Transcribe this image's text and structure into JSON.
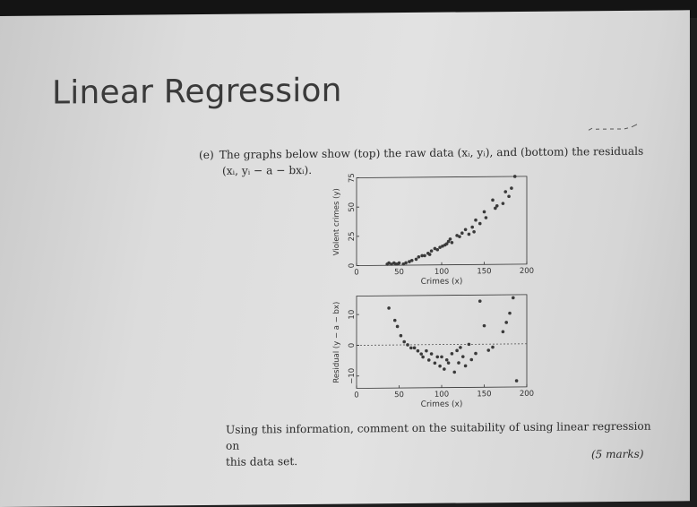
{
  "slide": {
    "title": "Linear Regression",
    "question_label": "(e)",
    "question_line1": "The graphs below show (top) the raw data (xᵢ, yᵢ), and (bottom) the residuals",
    "question_line2": "(xᵢ, yᵢ − a − bxᵢ).",
    "followup_line1": "Using this information, comment on the suitability of using linear regression on",
    "followup_line2": "this data set.",
    "marks": "(5 marks)"
  },
  "chart_data": [
    {
      "type": "scatter",
      "title": "",
      "xlabel": "Crimes (x)",
      "ylabel": "Violent crimes (y)",
      "xlim": [
        0,
        200
      ],
      "ylim": [
        0,
        75
      ],
      "xticks": [
        0,
        50,
        100,
        150,
        200
      ],
      "xtick_labels": [
        "0",
        "50",
        "100",
        "150",
        "200"
      ],
      "yticks": [
        0,
        25,
        50,
        75
      ],
      "ytick_labels": [
        "0",
        "25",
        "50",
        "75"
      ],
      "points": [
        [
          36,
          1
        ],
        [
          38,
          2
        ],
        [
          41,
          1
        ],
        [
          44,
          2
        ],
        [
          46,
          1
        ],
        [
          48,
          1
        ],
        [
          50,
          2
        ],
        [
          55,
          1
        ],
        [
          58,
          2
        ],
        [
          62,
          3
        ],
        [
          65,
          4
        ],
        [
          70,
          5
        ],
        [
          73,
          7
        ],
        [
          77,
          8
        ],
        [
          80,
          8
        ],
        [
          84,
          10
        ],
        [
          86,
          9
        ],
        [
          88,
          12
        ],
        [
          92,
          14
        ],
        [
          95,
          13
        ],
        [
          98,
          15
        ],
        [
          101,
          16
        ],
        [
          104,
          17
        ],
        [
          106,
          18
        ],
        [
          108,
          20
        ],
        [
          110,
          22
        ],
        [
          112,
          19
        ],
        [
          118,
          25
        ],
        [
          121,
          24
        ],
        [
          124,
          27
        ],
        [
          128,
          30
        ],
        [
          132,
          26
        ],
        [
          136,
          32
        ],
        [
          138,
          28
        ],
        [
          140,
          38
        ],
        [
          145,
          35
        ],
        [
          150,
          45
        ],
        [
          152,
          40
        ],
        [
          160,
          55
        ],
        [
          163,
          48
        ],
        [
          165,
          50
        ],
        [
          172,
          52
        ],
        [
          175,
          62
        ],
        [
          179,
          58
        ],
        [
          182,
          65
        ],
        [
          186,
          75
        ]
      ]
    },
    {
      "type": "scatter",
      "title": "",
      "xlabel": "Crimes (x)",
      "ylabel": "Residual (y − a − bx)",
      "xlim": [
        0,
        200
      ],
      "ylim": [
        -14,
        16
      ],
      "xticks": [
        0,
        50,
        100,
        150,
        200
      ],
      "xtick_labels": [
        "0",
        "50",
        "100",
        "150",
        "200"
      ],
      "yticks": [
        -10,
        0,
        10
      ],
      "ytick_labels": [
        "−10",
        "0",
        "10"
      ],
      "reference_line_y": 0,
      "points": [
        [
          38,
          12
        ],
        [
          45,
          8
        ],
        [
          48,
          6
        ],
        [
          52,
          3
        ],
        [
          56,
          1
        ],
        [
          60,
          0
        ],
        [
          64,
          -1
        ],
        [
          68,
          -1
        ],
        [
          72,
          -2
        ],
        [
          76,
          -3
        ],
        [
          78,
          -4
        ],
        [
          82,
          -2
        ],
        [
          85,
          -5
        ],
        [
          88,
          -3
        ],
        [
          92,
          -6
        ],
        [
          95,
          -4
        ],
        [
          98,
          -7
        ],
        [
          100,
          -4
        ],
        [
          103,
          -8
        ],
        [
          106,
          -5
        ],
        [
          108,
          -6
        ],
        [
          112,
          -3
        ],
        [
          115,
          -9
        ],
        [
          118,
          -2
        ],
        [
          120,
          -6
        ],
        [
          122,
          -1
        ],
        [
          125,
          -4
        ],
        [
          128,
          -7
        ],
        [
          132,
          0
        ],
        [
          135,
          -5
        ],
        [
          140,
          -3
        ],
        [
          145,
          14
        ],
        [
          150,
          6
        ],
        [
          155,
          -2
        ],
        [
          160,
          -1
        ],
        [
          172,
          4
        ],
        [
          176,
          7
        ],
        [
          180,
          10
        ],
        [
          184,
          15
        ],
        [
          188,
          -12
        ]
      ]
    }
  ]
}
